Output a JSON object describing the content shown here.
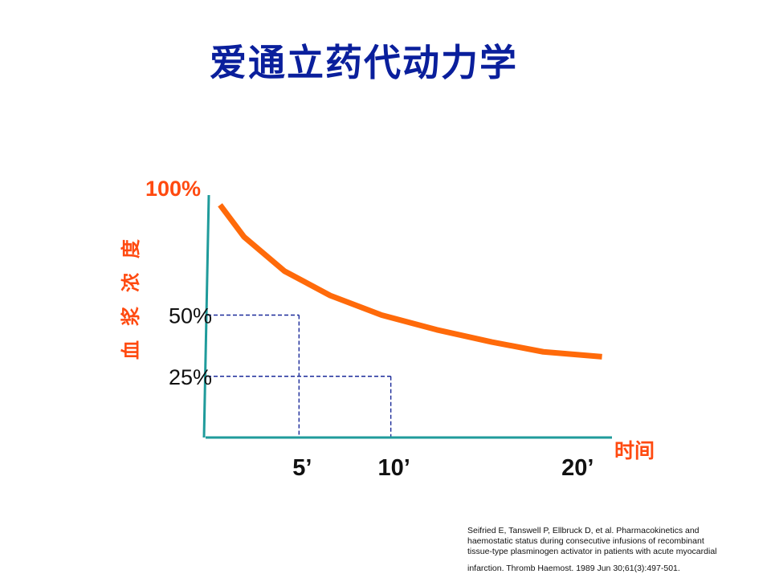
{
  "title": "爱通立药代动力学",
  "chart_data": {
    "type": "line",
    "x_label": "时间",
    "y_label_chars": [
      "血",
      "浆",
      "浓",
      "度"
    ],
    "y_top_label": "100%",
    "y_ticks": [
      {
        "label": "50%",
        "value": 50
      },
      {
        "label": "25%",
        "value": 25
      }
    ],
    "x_ticks": [
      {
        "label": "5’",
        "value": 5
      },
      {
        "label": "10’",
        "value": 10
      },
      {
        "label": "20’",
        "value": 20
      }
    ],
    "reference_lines": [
      {
        "x": 5,
        "y": 50
      },
      {
        "x": 10,
        "y": 25
      }
    ],
    "series": [
      {
        "color": "#ff6a0a",
        "x": [
          0.7,
          2,
          4.2,
          6.7,
          9.5,
          12.5,
          15.5,
          18.3,
          21.5
        ],
        "y": [
          95,
          82,
          68,
          58,
          50,
          44,
          39,
          35,
          33
        ]
      }
    ],
    "xlim": [
      0,
      22
    ],
    "ylim": [
      0,
      100
    ]
  },
  "reference": [
    "Seifried E, Tanswell P, Ellbruck D, et al. Pharmacokinetics and",
    "haemostatic status during consecutive infusions of recombinant",
    "tissue-type plasminogen activator in patients with acute myocardial",
    "infarction. Thromb Haemost. 1989 Jun 30;61(3):497-501."
  ]
}
